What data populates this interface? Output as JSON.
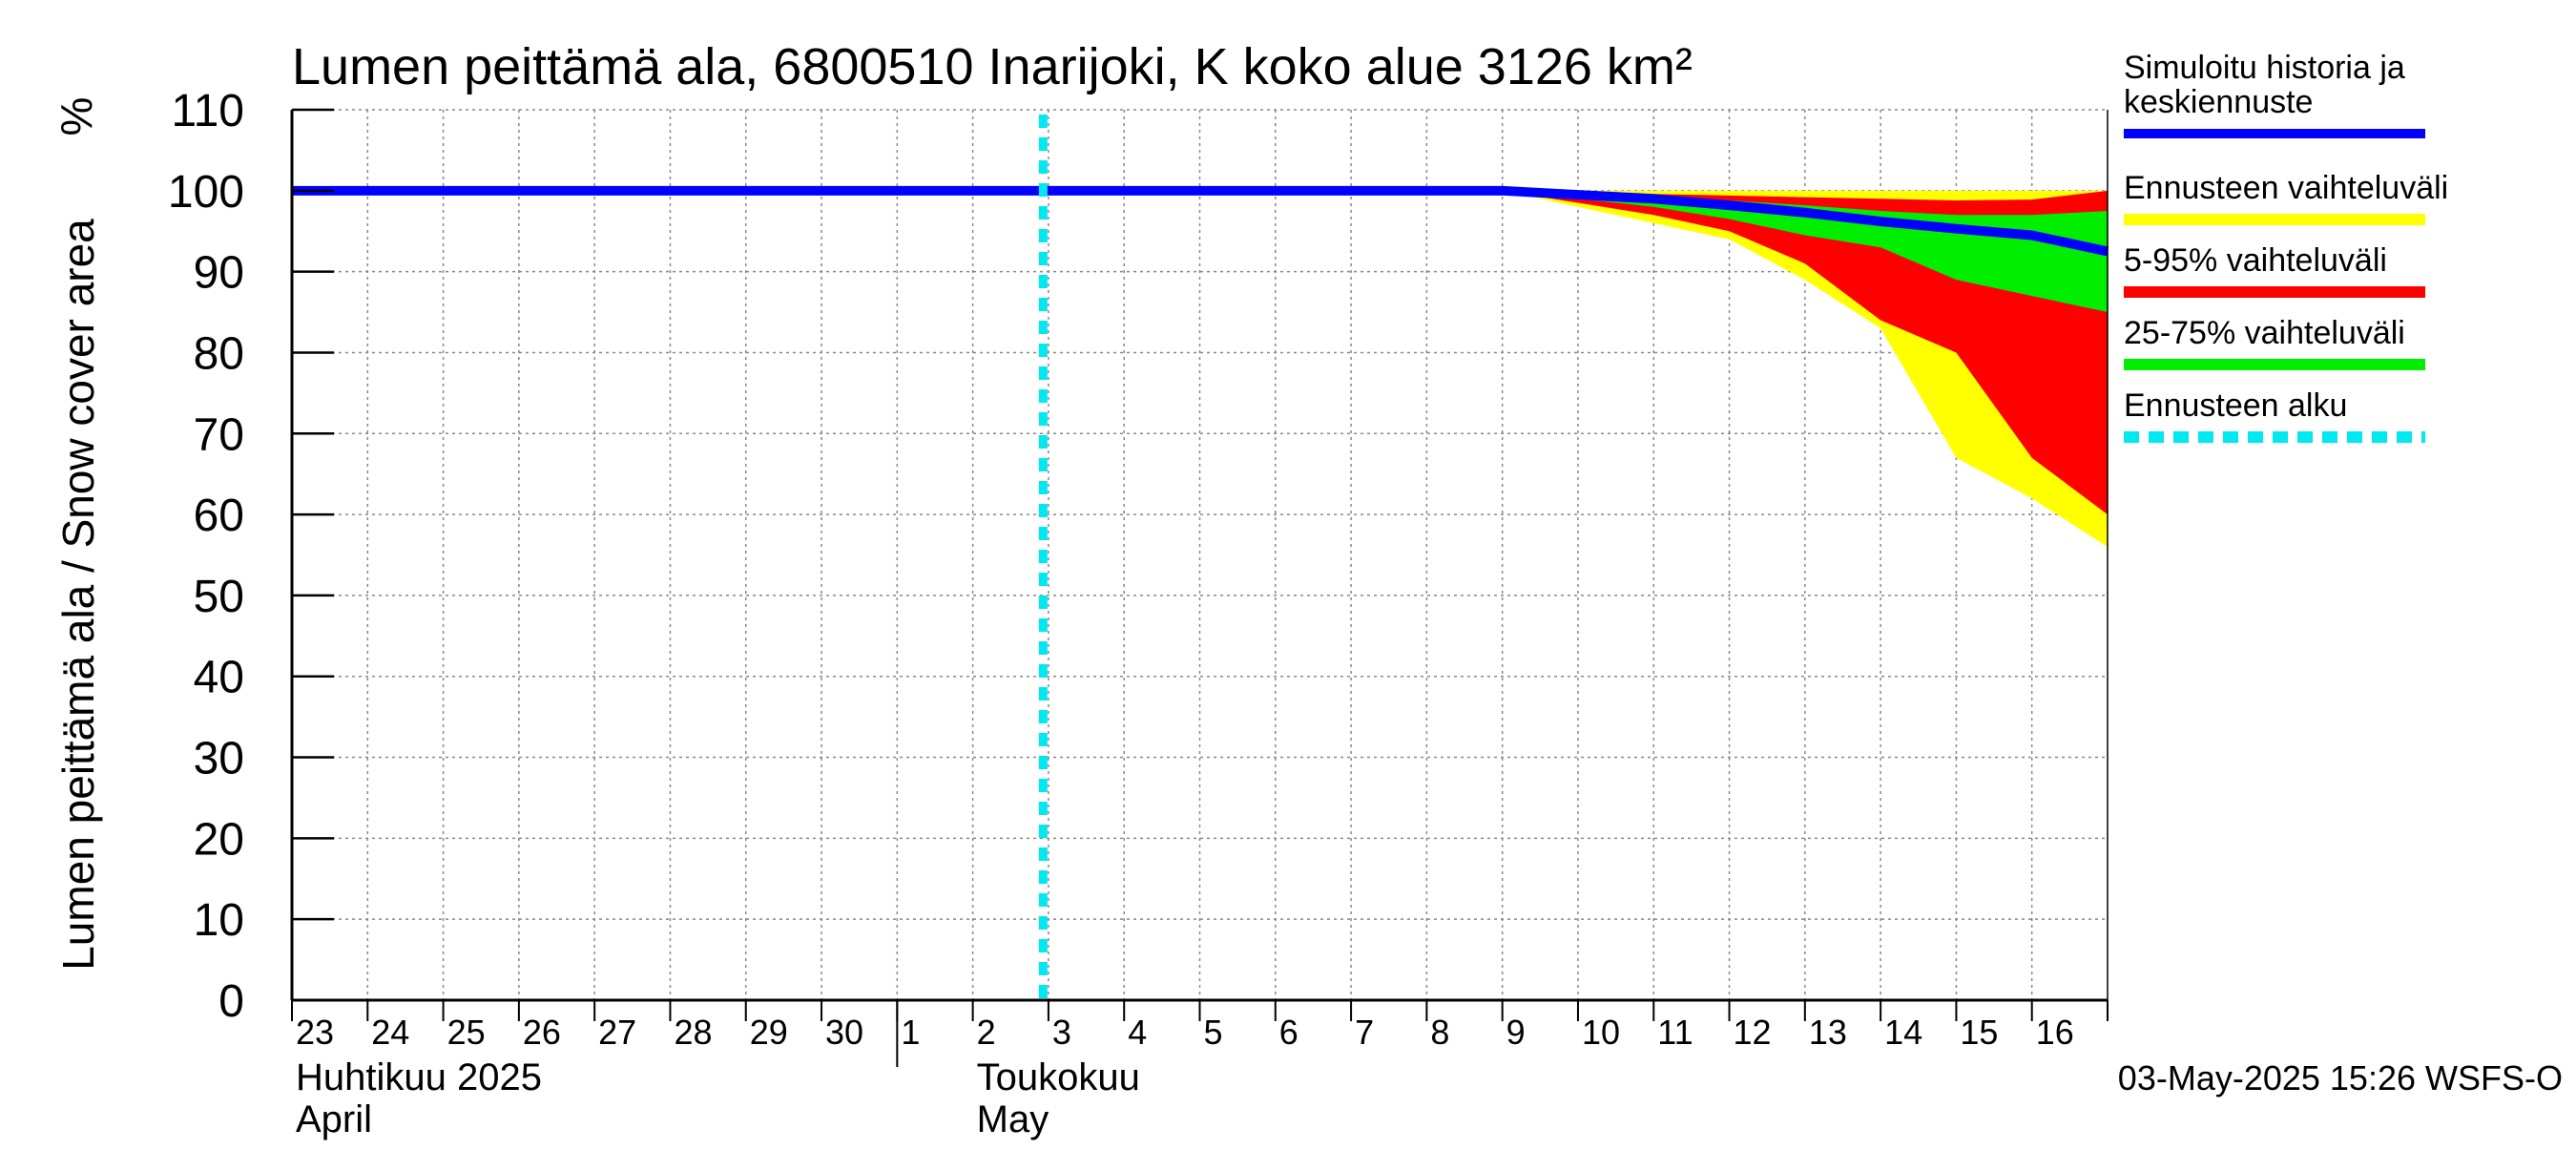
{
  "chart_data": {
    "type": "area",
    "title": "Lumen peittämä ala, 6800510 Inarijoki, K koko alue 3126 km²",
    "ylabel": "Lumen peittämä ala / Snow cover area",
    "yunit": "%",
    "ylim": [
      0,
      110
    ],
    "yticks": [
      0,
      10,
      20,
      30,
      40,
      50,
      60,
      70,
      80,
      90,
      100,
      110
    ],
    "xlim": [
      "2025-04-23",
      "2025-05-17"
    ],
    "grid": true,
    "day_ticks": [
      {
        "date": "2025-04-23",
        "label": "23"
      },
      {
        "date": "2025-04-24",
        "label": "24"
      },
      {
        "date": "2025-04-25",
        "label": "25"
      },
      {
        "date": "2025-04-26",
        "label": "26"
      },
      {
        "date": "2025-04-27",
        "label": "27"
      },
      {
        "date": "2025-04-28",
        "label": "28"
      },
      {
        "date": "2025-04-29",
        "label": "29"
      },
      {
        "date": "2025-04-30",
        "label": "30"
      },
      {
        "date": "2025-05-01",
        "label": "1"
      },
      {
        "date": "2025-05-02",
        "label": "2"
      },
      {
        "date": "2025-05-03",
        "label": "3"
      },
      {
        "date": "2025-05-04",
        "label": "4"
      },
      {
        "date": "2025-05-05",
        "label": "5"
      },
      {
        "date": "2025-05-06",
        "label": "6"
      },
      {
        "date": "2025-05-07",
        "label": "7"
      },
      {
        "date": "2025-05-08",
        "label": "8"
      },
      {
        "date": "2025-05-09",
        "label": "9"
      },
      {
        "date": "2025-05-10",
        "label": "10"
      },
      {
        "date": "2025-05-11",
        "label": "11"
      },
      {
        "date": "2025-05-12",
        "label": "12"
      },
      {
        "date": "2025-05-13",
        "label": "13"
      },
      {
        "date": "2025-05-14",
        "label": "14"
      },
      {
        "date": "2025-05-15",
        "label": "15"
      },
      {
        "date": "2025-05-16",
        "label": "16"
      }
    ],
    "month_labels": [
      {
        "date": "2025-04-23",
        "line1": "Huhtikuu  2025",
        "line2": "April"
      },
      {
        "date": "2025-05-02",
        "line1": "Toukokuu",
        "line2": "May"
      }
    ],
    "month_boundary": "2025-05-01",
    "forecast_start": "2025-05-03",
    "x": [
      "2025-04-23",
      "2025-05-09",
      "2025-05-10",
      "2025-05-11",
      "2025-05-12",
      "2025-05-13",
      "2025-05-14",
      "2025-05-15",
      "2025-05-16",
      "2025-05-17"
    ],
    "series": [
      {
        "name": "Ennusteen vaihteluväli",
        "kind": "band",
        "color": "#ffff00",
        "lower": [
          100,
          100,
          98,
          96,
          94,
          89,
          83,
          67,
          62,
          56
        ],
        "upper": [
          100,
          100,
          100,
          100,
          100,
          100,
          100,
          100,
          100,
          100
        ]
      },
      {
        "name": "5-95% vaihteluväli",
        "kind": "band",
        "color": "#ff0000",
        "lower": [
          100,
          100,
          98.5,
          97,
          95,
          91,
          84,
          80,
          67,
          60
        ],
        "upper": [
          100,
          100,
          99.8,
          99.6,
          99.4,
          99.2,
          99,
          98.8,
          98.9,
          100
        ]
      },
      {
        "name": "25-75% vaihteluväli",
        "kind": "band",
        "color": "#00ee00",
        "lower": [
          100,
          100,
          99,
          98,
          96.5,
          94.5,
          93,
          89,
          87,
          85
        ],
        "upper": [
          100,
          100,
          99.6,
          99.2,
          98.8,
          98.2,
          97.5,
          97,
          97,
          97.5
        ]
      },
      {
        "name": "Simuloitu historia ja keskiennuste",
        "kind": "line",
        "color": "#0000ff",
        "values": [
          100,
          100,
          99.5,
          99,
          98.2,
          97.3,
          96.2,
          95.3,
          94.5,
          92.5
        ]
      }
    ],
    "forecast_line": {
      "name": "Ennusteen alku",
      "color": "#00e8f0"
    },
    "legend": {
      "position": "right",
      "entries": [
        {
          "label": "Simuloitu historia ja keskiennuste",
          "color": "#0000ff",
          "style": "solid"
        },
        {
          "label": "Ennusteen vaihteluväli",
          "color": "#ffff00",
          "style": "solid"
        },
        {
          "label": "5-95% vaihteluväli",
          "color": "#ff0000",
          "style": "solid"
        },
        {
          "label": "25-75% vaihteluväli",
          "color": "#00ee00",
          "style": "solid"
        },
        {
          "label": "Ennusteen alku",
          "color": "#00e8f0",
          "style": "dashed"
        }
      ]
    },
    "footer": "03-May-2025 15:26 WSFS-O"
  }
}
